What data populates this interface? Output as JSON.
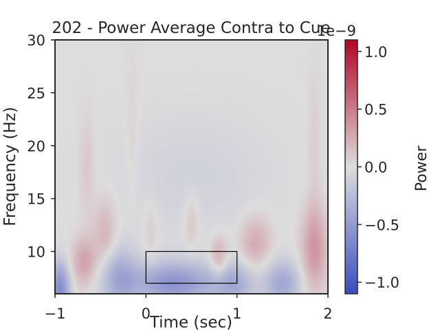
{
  "chart_data": {
    "type": "heatmap",
    "title": "202 - Power Average Contra to Cue",
    "xlabel": "Time (sec)",
    "ylabel": "Frequency (Hz)",
    "xlim": [
      -1,
      2
    ],
    "ylim": [
      6,
      30
    ],
    "x_ticks": [
      {
        "value": -1,
        "label": "−1"
      },
      {
        "value": 0,
        "label": "0"
      },
      {
        "value": 1,
        "label": "1"
      },
      {
        "value": 2,
        "label": "2"
      }
    ],
    "y_ticks": [
      {
        "value": 10,
        "label": "10"
      },
      {
        "value": 15,
        "label": "15"
      },
      {
        "value": 20,
        "label": "20"
      },
      {
        "value": 25,
        "label": "25"
      },
      {
        "value": 30,
        "label": "30"
      }
    ],
    "colorbar": {
      "label": "Power",
      "offset_text": "1e−9",
      "colormap": "coolwarm",
      "vmin": -1.1,
      "vmax": 1.1,
      "colors": {
        "low": "#3b4cc0",
        "mid": "#dddddd",
        "high": "#b40426"
      },
      "ticks": [
        {
          "value": 1.0,
          "label": "1.0"
        },
        {
          "value": 0.5,
          "label": "0.5"
        },
        {
          "value": 0.0,
          "label": "0.0"
        },
        {
          "value": -0.5,
          "label": "−0.5"
        },
        {
          "value": -1.0,
          "label": "−1.0"
        }
      ]
    },
    "highlight_box": {
      "x": [
        0,
        1
      ],
      "y": [
        7,
        10
      ]
    },
    "features": [
      {
        "x": -0.68,
        "y": 9,
        "sx": 0.1,
        "sy": 1.6,
        "v": 0.3
      },
      {
        "x": -0.65,
        "y": 18,
        "sx": 0.06,
        "sy": 3.5,
        "v": 0.12
      },
      {
        "x": -0.45,
        "y": 11.5,
        "sx": 0.09,
        "sy": 2.5,
        "v": 0.22
      },
      {
        "x": -0.15,
        "y": 21,
        "sx": 0.05,
        "sy": 5,
        "v": 0.07
      },
      {
        "x": 0.05,
        "y": 12,
        "sx": 0.06,
        "sy": 2.2,
        "v": 0.1
      },
      {
        "x": 0.5,
        "y": 13,
        "sx": 0.06,
        "sy": 1.8,
        "v": 0.14
      },
      {
        "x": 0.8,
        "y": 9.2,
        "sx": 0.07,
        "sy": 1.5,
        "v": 0.28
      },
      {
        "x": 1.2,
        "y": 10.8,
        "sx": 0.12,
        "sy": 1.8,
        "v": 0.26
      },
      {
        "x": 1.85,
        "y": 10.3,
        "sx": 0.1,
        "sy": 2.8,
        "v": 0.36
      },
      {
        "x": 1.85,
        "y": 20,
        "sx": 0.05,
        "sy": 5,
        "v": 0.08
      },
      {
        "x": 0.3,
        "y": 7,
        "sx": 0.3,
        "sy": 1.4,
        "v": -0.55
      },
      {
        "x": 0.95,
        "y": 7,
        "sx": 0.18,
        "sy": 1.4,
        "v": -0.38
      },
      {
        "x": 1.5,
        "y": 7,
        "sx": 0.14,
        "sy": 1.5,
        "v": -0.4
      },
      {
        "x": -0.95,
        "y": 6.5,
        "sx": 0.08,
        "sy": 1.8,
        "v": -0.6
      },
      {
        "x": -0.3,
        "y": 7.5,
        "sx": 0.15,
        "sy": 2,
        "v": -0.4
      },
      {
        "x": 0.5,
        "y": 17,
        "sx": 0.6,
        "sy": 4,
        "v": -0.09
      }
    ]
  }
}
